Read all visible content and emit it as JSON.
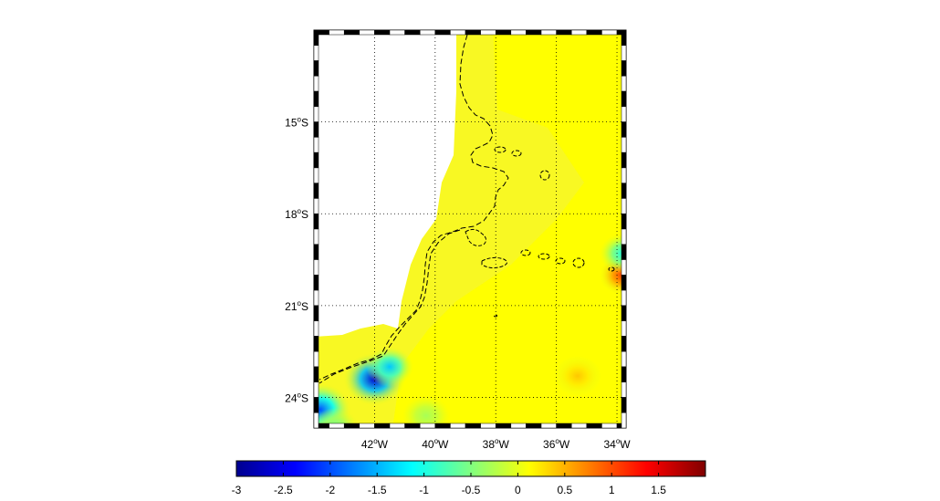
{
  "map": {
    "projection": "mercator",
    "lon_range": [
      -44.0,
      -33.7
    ],
    "lat_range": [
      -12.0,
      -25.0
    ],
    "grid": "dotted",
    "frame": "black-white-checkered",
    "lat_ticks": [
      {
        "value": -15,
        "num": "15",
        "deg": "o",
        "hem": "S"
      },
      {
        "value": -18,
        "num": "18",
        "deg": "o",
        "hem": "S"
      },
      {
        "value": -21,
        "num": "21",
        "deg": "o",
        "hem": "S"
      },
      {
        "value": -24,
        "num": "24",
        "deg": "o",
        "hem": "S"
      }
    ],
    "lon_ticks": [
      {
        "value": -42,
        "num": "42",
        "deg": "o",
        "hem": "W"
      },
      {
        "value": -40,
        "num": "40",
        "deg": "o",
        "hem": "W"
      },
      {
        "value": -38,
        "num": "38",
        "deg": "o",
        "hem": "W"
      },
      {
        "value": -36,
        "num": "36",
        "deg": "o",
        "hem": "W"
      },
      {
        "value": -34,
        "num": "34",
        "deg": "o",
        "hem": "W"
      }
    ],
    "land_color": "#ffffff",
    "sea_base_color": "#ffff00",
    "anomalies": [
      {
        "lon": -42.0,
        "lat": -23.4,
        "value": -2.6
      },
      {
        "lon": -41.5,
        "lat": -23.0,
        "value": -1.4
      },
      {
        "lon": -43.8,
        "lat": -24.4,
        "value": -2.0
      },
      {
        "lon": -43.3,
        "lat": -25.0,
        "value": -0.6
      },
      {
        "lon": -35.3,
        "lat": -23.3,
        "value": 0.4
      },
      {
        "lon": -33.8,
        "lat": -20.0,
        "value": 1.1
      },
      {
        "lon": -33.8,
        "lat": -19.3,
        "value": -1.0
      },
      {
        "lon": -40.3,
        "lat": -24.6,
        "value": -0.3
      }
    ]
  },
  "colorbar": {
    "min": -3,
    "max": 2,
    "colormap": "jet",
    "ticks": [
      "-3",
      "-2.5",
      "-2",
      "-1.5",
      "-1",
      "-0.5",
      "0",
      "0.5",
      "1",
      "1.5"
    ]
  }
}
